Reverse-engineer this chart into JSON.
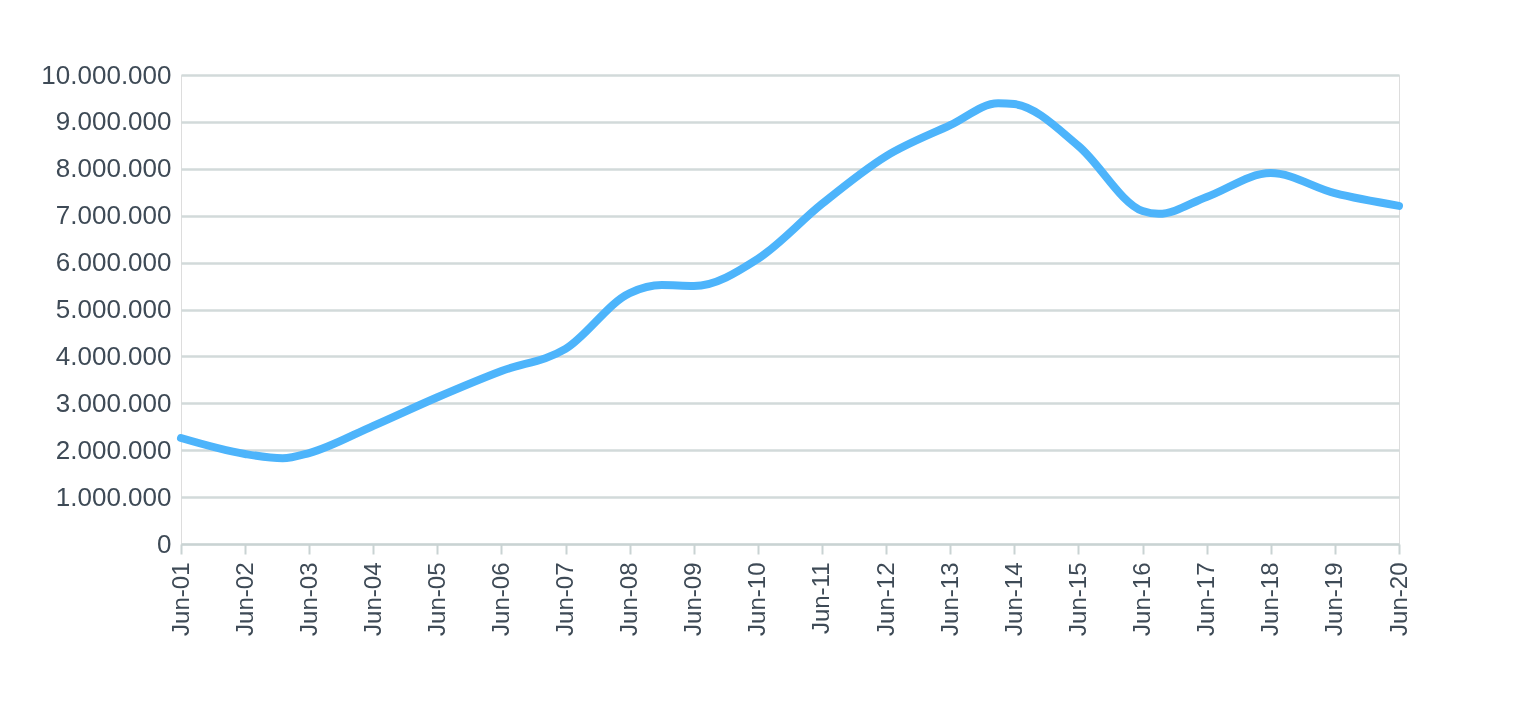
{
  "chart_data": {
    "type": "line",
    "x": [
      "2001-06",
      "2002-06",
      "2003-01",
      "2003-06",
      "2004-06",
      "2005-06",
      "2006-06",
      "2007-06",
      "2008-06",
      "2008-12",
      "2009-06",
      "2010-06",
      "2011-06",
      "2012-06",
      "2013-06",
      "2014-03",
      "2014-06",
      "2015-06",
      "2016-06",
      "2016-09",
      "2017-06",
      "2018-06",
      "2019-06",
      "2020-06"
    ],
    "series": [
      {
        "color": "#4db4fb",
        "values": [
          2260000,
          1920000,
          1830000,
          1940000,
          2520000,
          3130000,
          3690000,
          4160000,
          5350000,
          5520000,
          5500000,
          6080000,
          7250000,
          8270000,
          8930000,
          9400000,
          9380000,
          8490000,
          7100000,
          7040000,
          7400000,
          7910000,
          7480000,
          7210000
        ]
      }
    ],
    "xlim": [
      "2001-06",
      "2020-06"
    ],
    "xticks": [
      {
        "value": "2001-06",
        "label": "Jun-01"
      },
      {
        "value": "2002-06",
        "label": "Jun-02"
      },
      {
        "value": "2003-06",
        "label": "Jun-03"
      },
      {
        "value": "2004-06",
        "label": "Jun-04"
      },
      {
        "value": "2005-06",
        "label": "Jun-05"
      },
      {
        "value": "2006-06",
        "label": "Jun-06"
      },
      {
        "value": "2007-06",
        "label": "Jun-07"
      },
      {
        "value": "2008-06",
        "label": "Jun-08"
      },
      {
        "value": "2009-06",
        "label": "Jun-09"
      },
      {
        "value": "2010-06",
        "label": "Jun-10"
      },
      {
        "value": "2011-06",
        "label": "Jun-11"
      },
      {
        "value": "2012-06",
        "label": "Jun-12"
      },
      {
        "value": "2013-06",
        "label": "Jun-13"
      },
      {
        "value": "2014-06",
        "label": "Jun-14"
      },
      {
        "value": "2015-06",
        "label": "Jun-15"
      },
      {
        "value": "2016-06",
        "label": "Jun-16"
      },
      {
        "value": "2017-06",
        "label": "Jun-17"
      },
      {
        "value": "2018-06",
        "label": "Jun-18"
      },
      {
        "value": "2019-06",
        "label": "Jun-19"
      },
      {
        "value": "2020-06",
        "label": "Jun-20"
      }
    ],
    "ylim": [
      0,
      10000000
    ],
    "yticks": [
      {
        "value": 0,
        "label": "0"
      },
      {
        "value": 1000000,
        "label": "1.000.000"
      },
      {
        "value": 2000000,
        "label": "2.000.000"
      },
      {
        "value": 3000000,
        "label": "3.000.000"
      },
      {
        "value": 4000000,
        "label": "4.000.000"
      },
      {
        "value": 5000000,
        "label": "5.000.000"
      },
      {
        "value": 6000000,
        "label": "6.000.000"
      },
      {
        "value": 7000000,
        "label": "7.000.000"
      },
      {
        "value": 8000000,
        "label": "8.000.000"
      },
      {
        "value": 9000000,
        "label": "9.000.000"
      },
      {
        "value": 10000000,
        "label": "10.000.000"
      }
    ],
    "grid": "y",
    "marker": "none",
    "line_style": "solid"
  }
}
